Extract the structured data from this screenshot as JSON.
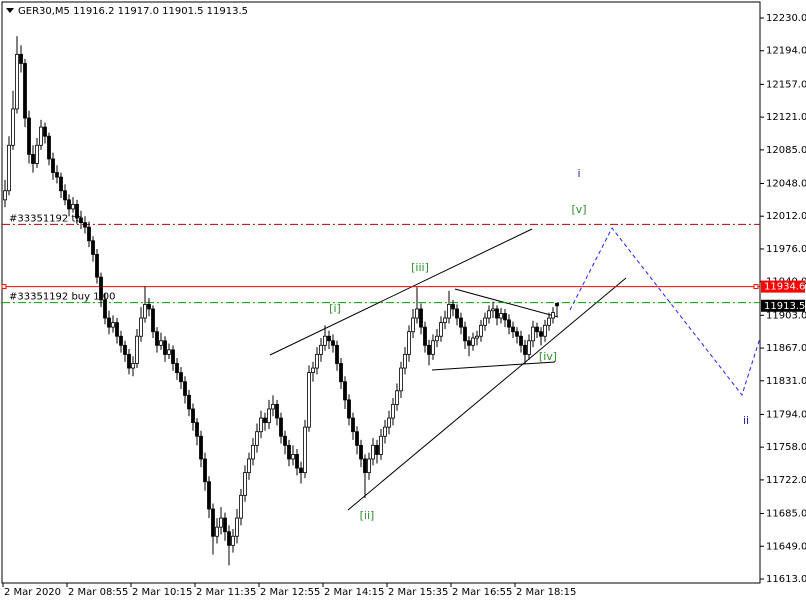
{
  "chart_data": {
    "type": "candlestick",
    "header": "GER30,M5  11916.2 11917.0 11901.5 11913.5",
    "ylim": [
      11608.6,
      12247.6
    ],
    "yticks": [
      {
        "value": 12230,
        "label": "12230.0"
      },
      {
        "value": 12194,
        "label": "12194.0"
      },
      {
        "value": 12157,
        "label": "12157.0"
      },
      {
        "value": 12121,
        "label": "12121.0"
      },
      {
        "value": 12085,
        "label": "12085.0"
      },
      {
        "value": 12048,
        "label": "12048.0"
      },
      {
        "value": 12012,
        "label": "12012.0"
      },
      {
        "value": 11976,
        "label": "11976.0"
      },
      {
        "value": 11940,
        "label": "11940.0"
      },
      {
        "value": 11903,
        "label": "11903.0"
      },
      {
        "value": 11867,
        "label": "11867.0"
      },
      {
        "value": 11831,
        "label": "11831.0"
      },
      {
        "value": 11794,
        "label": "11794.0"
      },
      {
        "value": 11758,
        "label": "11758.0"
      },
      {
        "value": 11722,
        "label": "11722.0"
      },
      {
        "value": 11685,
        "label": "11685.0"
      },
      {
        "value": 11649,
        "label": "11649.0"
      },
      {
        "value": 11613,
        "label": "11613.0"
      }
    ],
    "grid": false,
    "bull_color": "#ffffff",
    "bear_color": "#000000",
    "categories": [
      "2 Mar 2020",
      null,
      null,
      null,
      null,
      null,
      null,
      null,
      null,
      null,
      null,
      null,
      null,
      null,
      null,
      null,
      "2 Mar 08:55",
      null,
      null,
      null,
      null,
      null,
      null,
      null,
      null,
      null,
      null,
      null,
      null,
      null,
      null,
      null,
      "2 Mar 10:15",
      null,
      null,
      null,
      null,
      null,
      null,
      null,
      null,
      null,
      null,
      null,
      null,
      null,
      null,
      null,
      "2 Mar 11:35",
      null,
      null,
      null,
      null,
      null,
      null,
      null,
      null,
      null,
      null,
      null,
      null,
      null,
      null,
      null,
      "2 Mar 12:55",
      null,
      null,
      null,
      null,
      null,
      null,
      null,
      null,
      null,
      null,
      null,
      null,
      null,
      null,
      null,
      "2 Mar 14:15",
      null,
      null,
      null,
      null,
      null,
      null,
      null,
      null,
      null,
      null,
      null,
      null,
      null,
      null,
      null,
      "2 Mar 15:35",
      null,
      null,
      null,
      null,
      null,
      null,
      null,
      null,
      null,
      null,
      null,
      null,
      null,
      null,
      null,
      "2 Mar 16:55",
      null,
      null,
      null,
      null,
      null,
      null,
      null,
      null,
      null,
      null,
      null,
      null,
      null,
      null,
      null,
      "2 Mar 18:15",
      null,
      null,
      null,
      null,
      null,
      null,
      null,
      null,
      null,
      null
    ],
    "candles": [
      [
        12030,
        12052,
        12022,
        12040
      ],
      [
        12040,
        12100,
        12035,
        12090
      ],
      [
        12090,
        12150,
        12085,
        12130
      ],
      [
        12130,
        12210,
        12125,
        12190
      ],
      [
        12190,
        12200,
        12170,
        12180
      ],
      [
        12180,
        12185,
        12110,
        12120
      ],
      [
        12120,
        12128,
        12070,
        12080
      ],
      [
        12080,
        12090,
        12060,
        12070
      ],
      [
        12070,
        12098,
        12065,
        12090
      ],
      [
        12090,
        12118,
        12085,
        12110
      ],
      [
        12110,
        12115,
        12092,
        12100
      ],
      [
        12100,
        12104,
        12068,
        12075
      ],
      [
        12075,
        12082,
        12052,
        12060
      ],
      [
        12060,
        12068,
        12048,
        12055
      ],
      [
        12055,
        12060,
        12032,
        12040
      ],
      [
        12040,
        12047,
        12024,
        12030
      ],
      [
        12030,
        12036,
        12012,
        12020
      ],
      [
        12020,
        12033,
        12016,
        12025
      ],
      [
        12025,
        12030,
        12004,
        12010
      ],
      [
        12010,
        12018,
        11998,
        12005
      ],
      [
        12005,
        12012,
        11993,
        12000
      ],
      [
        12000,
        12006,
        11978,
        11985
      ],
      [
        11985,
        11990,
        11962,
        11970
      ],
      [
        11970,
        11976,
        11938,
        11945
      ],
      [
        11945,
        11950,
        11912,
        11920
      ],
      [
        11920,
        11927,
        11893,
        11900
      ],
      [
        11900,
        11908,
        11882,
        11890
      ],
      [
        11890,
        11903,
        11884,
        11895
      ],
      [
        11895,
        11900,
        11872,
        11880
      ],
      [
        11880,
        11886,
        11862,
        11870
      ],
      [
        11870,
        11875,
        11852,
        11860
      ],
      [
        11860,
        11866,
        11838,
        11845
      ],
      [
        11845,
        11858,
        11836,
        11850
      ],
      [
        11850,
        11888,
        11845,
        11880
      ],
      [
        11880,
        11912,
        11874,
        11900
      ],
      [
        11900,
        11935,
        11895,
        11915
      ],
      [
        11915,
        11922,
        11902,
        11910
      ],
      [
        11910,
        11914,
        11878,
        11885
      ],
      [
        11885,
        11890,
        11862,
        11870
      ],
      [
        11870,
        11884,
        11865,
        11875
      ],
      [
        11875,
        11880,
        11852,
        11860
      ],
      [
        11860,
        11872,
        11855,
        11865
      ],
      [
        11865,
        11870,
        11842,
        11850
      ],
      [
        11850,
        11856,
        11832,
        11840
      ],
      [
        11840,
        11846,
        11822,
        11830
      ],
      [
        11830,
        11836,
        11806,
        11815
      ],
      [
        11815,
        11821,
        11792,
        11800
      ],
      [
        11800,
        11806,
        11776,
        11785
      ],
      [
        11785,
        11790,
        11760,
        11770
      ],
      [
        11770,
        11776,
        11736,
        11745
      ],
      [
        11745,
        11752,
        11710,
        11720
      ],
      [
        11720,
        11726,
        11680,
        11690
      ],
      [
        11690,
        11696,
        11640,
        11660
      ],
      [
        11660,
        11680,
        11652,
        11670
      ],
      [
        11670,
        11692,
        11662,
        11680
      ],
      [
        11680,
        11686,
        11655,
        11665
      ],
      [
        11665,
        11672,
        11628,
        11650
      ],
      [
        11650,
        11668,
        11642,
        11660
      ],
      [
        11660,
        11690,
        11652,
        11680
      ],
      [
        11680,
        11712,
        11672,
        11705
      ],
      [
        11705,
        11738,
        11698,
        11730
      ],
      [
        11730,
        11752,
        11722,
        11745
      ],
      [
        11745,
        11768,
        11738,
        11760
      ],
      [
        11760,
        11784,
        11752,
        11775
      ],
      [
        11775,
        11798,
        11768,
        11790
      ],
      [
        11790,
        11796,
        11776,
        11785
      ],
      [
        11785,
        11810,
        11778,
        11800
      ],
      [
        11800,
        11815,
        11792,
        11805
      ],
      [
        11805,
        11810,
        11782,
        11790
      ],
      [
        11790,
        11796,
        11762,
        11770
      ],
      [
        11770,
        11776,
        11750,
        11760
      ],
      [
        11760,
        11766,
        11737,
        11745
      ],
      [
        11745,
        11760,
        11738,
        11750
      ],
      [
        11750,
        11756,
        11727,
        11735
      ],
      [
        11735,
        11742,
        11718,
        11730
      ],
      [
        11730,
        11788,
        11724,
        11780
      ],
      [
        11780,
        11848,
        11775,
        11840
      ],
      [
        11840,
        11852,
        11830,
        11845
      ],
      [
        11845,
        11868,
        11838,
        11860
      ],
      [
        11860,
        11878,
        11852,
        11870
      ],
      [
        11870,
        11892,
        11864,
        11880
      ],
      [
        11880,
        11886,
        11866,
        11875
      ],
      [
        11875,
        11882,
        11862,
        11870
      ],
      [
        11870,
        11875,
        11842,
        11850
      ],
      [
        11850,
        11856,
        11822,
        11830
      ],
      [
        11830,
        11836,
        11800,
        11810
      ],
      [
        11810,
        11816,
        11782,
        11790
      ],
      [
        11790,
        11796,
        11766,
        11775
      ],
      [
        11775,
        11781,
        11750,
        11760
      ],
      [
        11760,
        11766,
        11736,
        11745
      ],
      [
        11745,
        11750,
        11702,
        11730
      ],
      [
        11730,
        11752,
        11722,
        11745
      ],
      [
        11745,
        11768,
        11738,
        11760
      ],
      [
        11760,
        11766,
        11740,
        11750
      ],
      [
        11750,
        11778,
        11744,
        11770
      ],
      [
        11770,
        11788,
        11762,
        11780
      ],
      [
        11780,
        11798,
        11772,
        11790
      ],
      [
        11790,
        11812,
        11782,
        11805
      ],
      [
        11805,
        11828,
        11798,
        11820
      ],
      [
        11820,
        11852,
        11812,
        11845
      ],
      [
        11845,
        11868,
        11838,
        11860
      ],
      [
        11860,
        11892,
        11852,
        11885
      ],
      [
        11885,
        11910,
        11878,
        11900
      ],
      [
        11900,
        11934,
        11894,
        11910
      ],
      [
        11910,
        11916,
        11882,
        11890
      ],
      [
        11890,
        11896,
        11862,
        11870
      ],
      [
        11870,
        11876,
        11848,
        11860
      ],
      [
        11860,
        11882,
        11854,
        11875
      ],
      [
        11875,
        11888,
        11868,
        11880
      ],
      [
        11880,
        11902,
        11874,
        11895
      ],
      [
        11895,
        11908,
        11888,
        11900
      ],
      [
        11900,
        11930,
        11894,
        11915
      ],
      [
        11915,
        11920,
        11902,
        11910
      ],
      [
        11910,
        11915,
        11892,
        11900
      ],
      [
        11900,
        11906,
        11882,
        11890
      ],
      [
        11890,
        11896,
        11866,
        11875
      ],
      [
        11875,
        11880,
        11858,
        11870
      ],
      [
        11870,
        11884,
        11864,
        11878
      ],
      [
        11878,
        11886,
        11870,
        11880
      ],
      [
        11880,
        11898,
        11874,
        11892
      ],
      [
        11892,
        11906,
        11886,
        11900
      ],
      [
        11900,
        11914,
        11894,
        11908
      ],
      [
        11908,
        11918,
        11900,
        11910
      ],
      [
        11910,
        11914,
        11892,
        11900
      ],
      [
        11900,
        11911,
        11894,
        11905
      ],
      [
        11905,
        11910,
        11890,
        11898
      ],
      [
        11898,
        11904,
        11882,
        11890
      ],
      [
        11890,
        11896,
        11878,
        11885
      ],
      [
        11885,
        11890,
        11872,
        11880
      ],
      [
        11880,
        11886,
        11862,
        11870
      ],
      [
        11870,
        11876,
        11850,
        11860
      ],
      [
        11860,
        11882,
        11854,
        11875
      ],
      [
        11875,
        11897,
        11868,
        11890
      ],
      [
        11890,
        11895,
        11878,
        11885
      ],
      [
        11885,
        11890,
        11870,
        11880
      ],
      [
        11880,
        11898,
        11874,
        11892
      ],
      [
        11892,
        11906,
        11886,
        11900
      ],
      [
        11900,
        11912,
        11894,
        11906
      ],
      [
        11916.2,
        11917.0,
        11901.5,
        11913.5
      ]
    ],
    "levels": [
      {
        "value": 12003,
        "label": "#33351192 tp",
        "color": "#c00000",
        "style": "dashdot"
      },
      {
        "value": 11934.6,
        "color": "#ff0000",
        "style": "solid"
      },
      {
        "value": 11917,
        "label": "#33351192 buy 1.00",
        "color": "#00a000",
        "style": "dashdot"
      }
    ],
    "annotations": [
      {
        "text": "i",
        "color": "#1f1fa0"
      },
      {
        "text": "[v]",
        "color": "#2e8b2e"
      },
      {
        "text": "[iii]",
        "color": "#2e8b2e"
      },
      {
        "text": "[i]",
        "color": "#2e8b2e"
      },
      {
        "text": "[ii]",
        "color": "#2e8b2e"
      },
      {
        "text": "[iv]",
        "color": "#2e8b2e"
      },
      {
        "text": "ii",
        "color": "#1f1fa0"
      }
    ]
  }
}
